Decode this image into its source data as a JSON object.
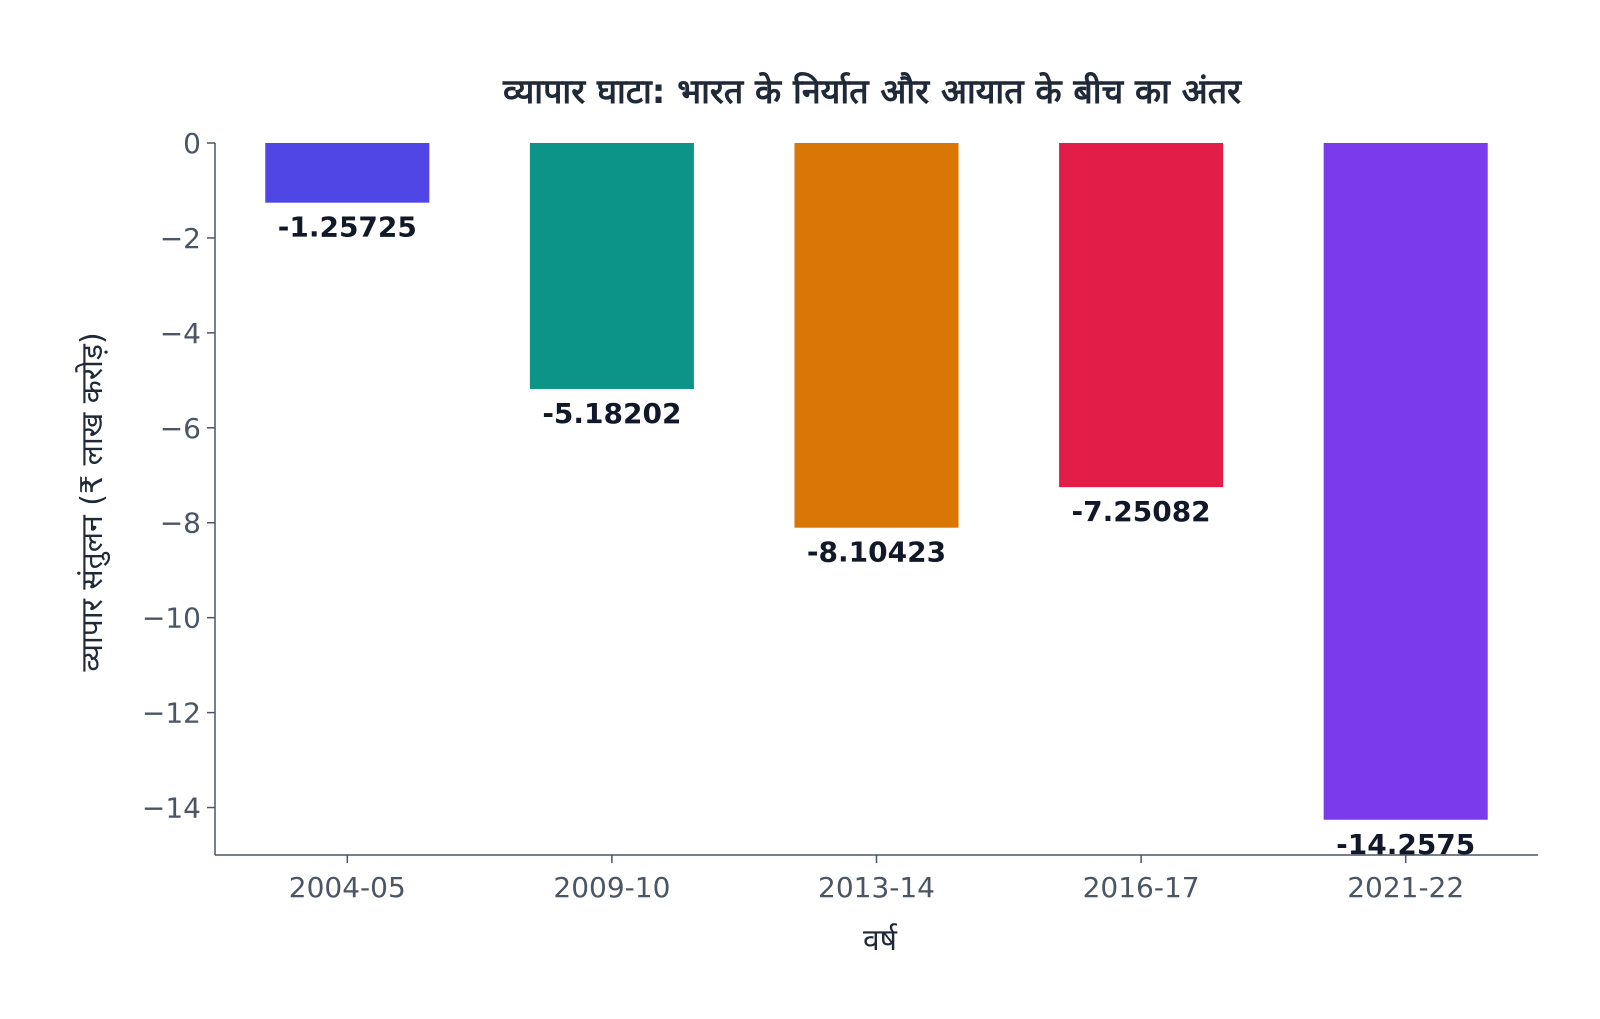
{
  "chart_data": {
    "type": "bar",
    "title": "व्यापार घाटा: भारत के निर्यात और आयात के बीच का अंतर",
    "xlabel": "वर्ष",
    "ylabel": "व्यापार संतुलन (₹ लाख करोड़)",
    "categories": [
      "2004-05",
      "2009-10",
      "2013-14",
      "2016-17",
      "2021-22"
    ],
    "values": [
      -1.25725,
      -5.18202,
      -8.10423,
      -7.25082,
      -14.2575
    ],
    "value_labels": [
      "-1.25725",
      "-5.18202",
      "-8.10423",
      "-7.25082",
      "-14.2575"
    ],
    "colors": [
      "#4f46e5",
      "#0d9488",
      "#d97706",
      "#e11d48",
      "#7c3aed"
    ],
    "ylim": [
      -15,
      0
    ],
    "yticks": [
      0,
      -2,
      -4,
      -6,
      -8,
      -10,
      -12,
      -14
    ],
    "ytick_labels": [
      "0",
      "−2",
      "−4",
      "−6",
      "−8",
      "−10",
      "−12",
      "−14"
    ],
    "grid": false,
    "legend": "none"
  }
}
